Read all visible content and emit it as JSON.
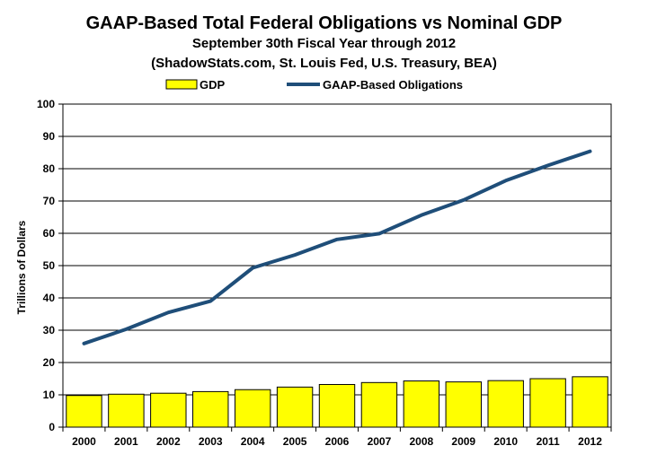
{
  "chart_data": {
    "type": "bar+line",
    "title": "GAAP-Based Total Federal Obligations vs Nominal GDP",
    "subtitle": "September 30th Fiscal Year through 2012",
    "source": "(ShadowStats.com, St. Louis Fed, U.S. Treasury, BEA)",
    "ylabel": "Trillions of Dollars",
    "xlabel": "",
    "ylim": [
      0,
      100
    ],
    "yticks": [
      "0",
      "10",
      "20",
      "30",
      "40",
      "50",
      "60",
      "70",
      "80",
      "90",
      "100"
    ],
    "categories": [
      "2000",
      "2001",
      "2002",
      "2003",
      "2004",
      "2005",
      "2006",
      "2007",
      "2008",
      "2009",
      "2010",
      "2011",
      "2012"
    ],
    "grid": true,
    "legend_position": "top",
    "series": [
      {
        "name": "GDP",
        "kind": "bar",
        "color": "#ffff00",
        "values": [
          9.8,
          10.2,
          10.5,
          11.0,
          11.6,
          12.4,
          13.2,
          13.8,
          14.3,
          14.0,
          14.4,
          15.0,
          15.6
        ]
      },
      {
        "name": "GAAP-Based Obligations",
        "kind": "line",
        "color": "#1f4e79",
        "values": [
          25.9,
          30.3,
          35.5,
          39.0,
          49.3,
          53.3,
          58.1,
          59.9,
          65.6,
          70.3,
          76.3,
          81.0,
          85.4
        ]
      }
    ]
  }
}
